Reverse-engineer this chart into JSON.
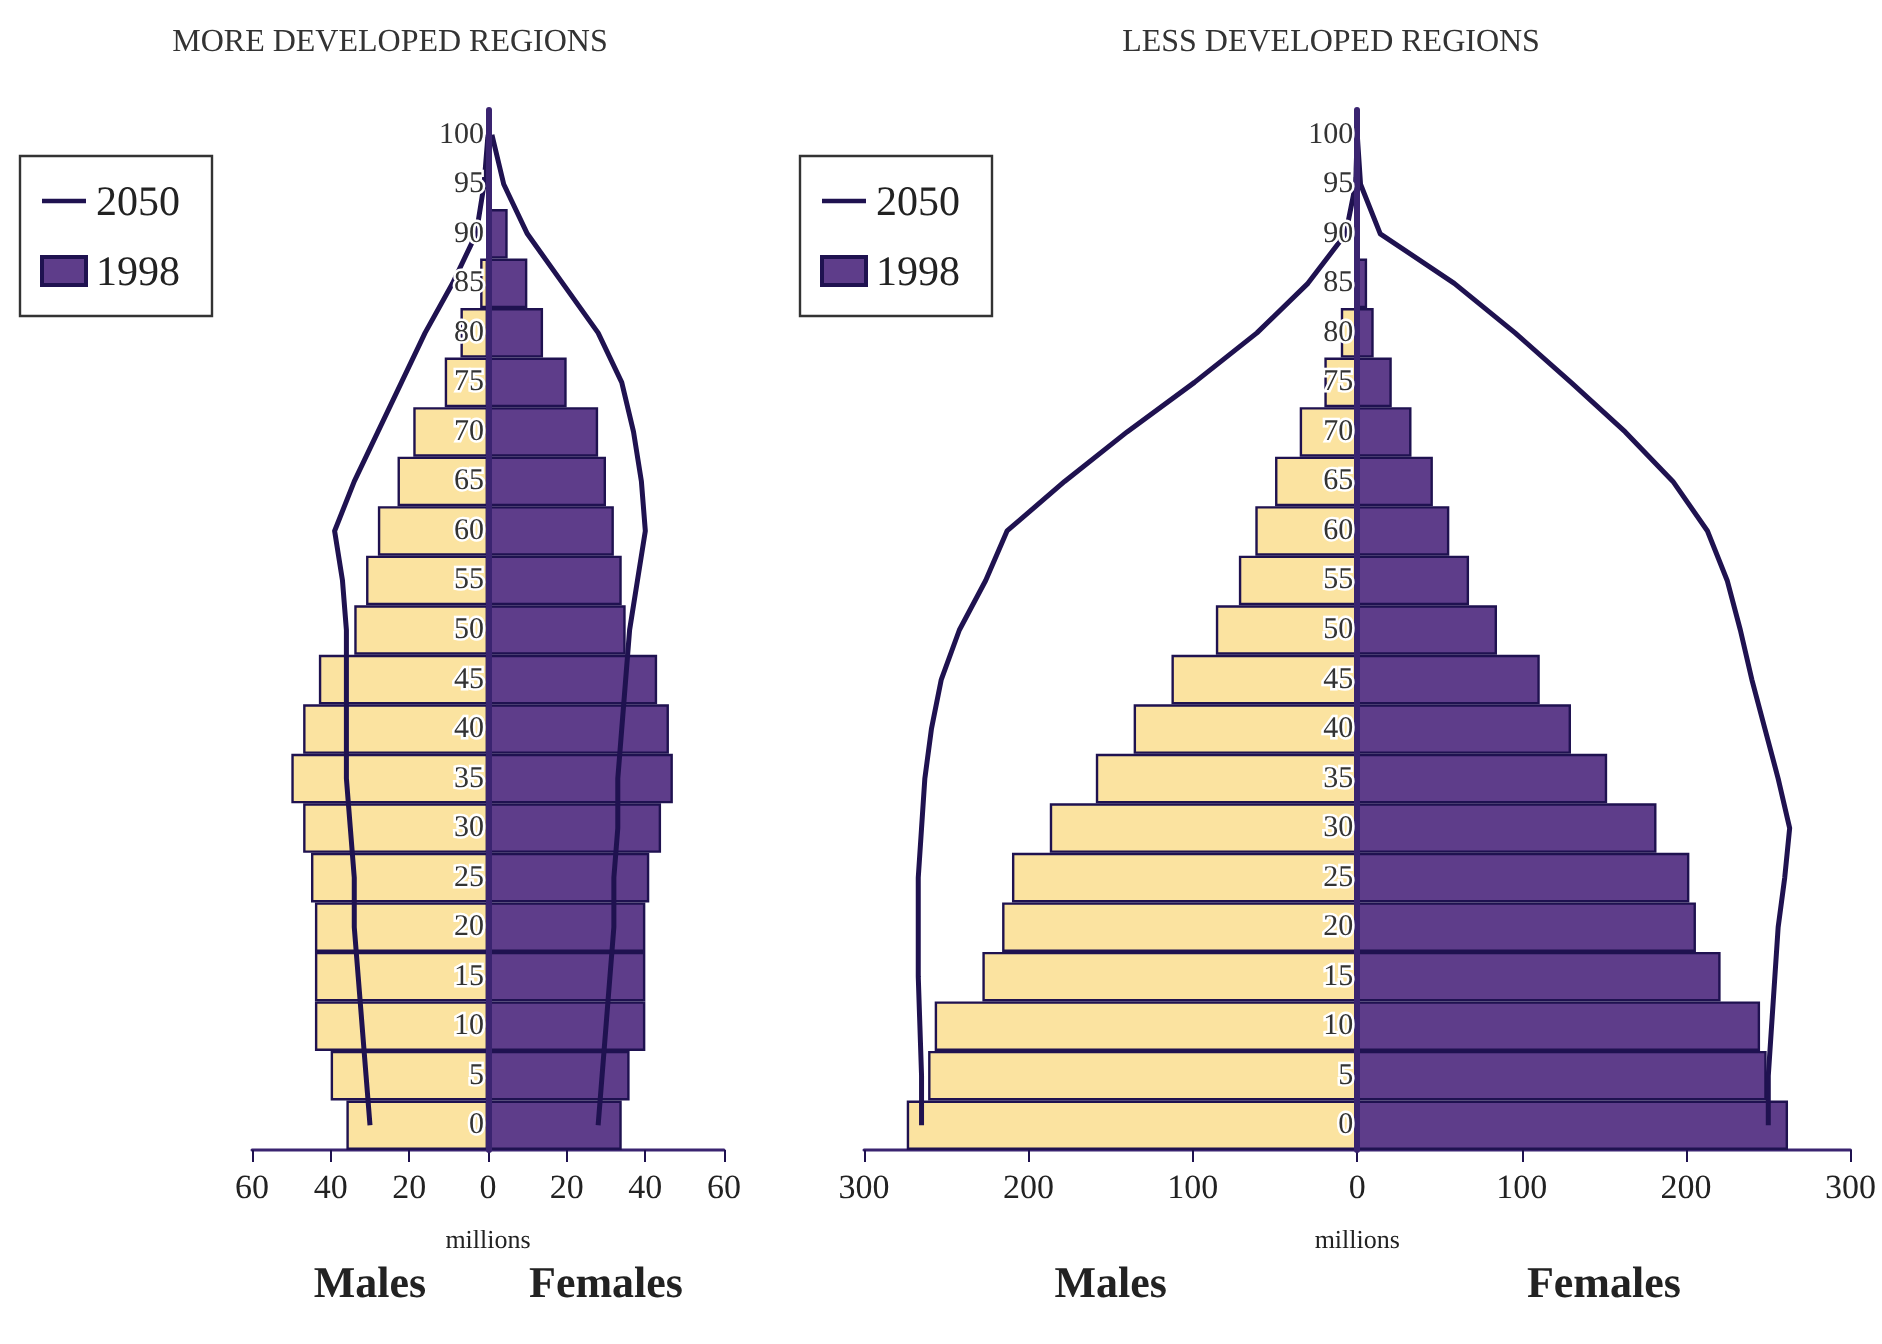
{
  "chart_data": [
    {
      "type": "bar",
      "orientation": "horizontal",
      "title": "MORE DEVELOPED REGIONS",
      "xlabel": "millions",
      "annotations": [
        "Males",
        "Females"
      ],
      "categories": [
        "100",
        "95",
        "90",
        "85",
        "80",
        "75",
        "70",
        "65",
        "60",
        "55",
        "50",
        "45",
        "40",
        "35",
        "30",
        "25",
        "20",
        "15",
        "10",
        "5",
        "0"
      ],
      "series": [
        {
          "color": "#fbe3a0",
          "values": [
            null,
            null,
            null,
            -2,
            -7,
            -11,
            -19,
            -23,
            -28,
            -31,
            -34,
            -43,
            -47,
            -50,
            -47,
            -45,
            -44,
            -44,
            -44,
            -40,
            -36
          ]
        },
        {
          "name": "1998",
          "color": "#5e3d8a",
          "values": [
            null,
            null,
            5,
            10,
            14,
            20,
            28,
            30,
            32,
            34,
            35,
            43,
            46,
            47,
            44,
            41,
            40,
            40,
            40,
            36,
            34
          ]
        },
        {
          "name": "2050",
          "type": "line",
          "color": "#1f1250",
          "values": [
            0,
            -1,
            -3,
            -9,
            -16,
            -22,
            -28,
            -34,
            -39,
            -37,
            -36,
            -36,
            -36,
            -36,
            -35,
            -34,
            -34,
            -33,
            -32,
            -31,
            -30
          ]
        },
        {
          "type": "line",
          "color": "#1f1250",
          "values": [
            1,
            4,
            10,
            19,
            28,
            34,
            37,
            39,
            40,
            38,
            36,
            35,
            34,
            33,
            33,
            32,
            32,
            31,
            30,
            29,
            28
          ]
        }
      ],
      "xlim": [
        -60,
        60
      ],
      "xticks": [
        {
          "value": -60,
          "label": "60"
        },
        {
          "value": -40,
          "label": "40"
        },
        {
          "value": -20,
          "label": "20"
        },
        0,
        20,
        40,
        60
      ],
      "legend": "top left",
      "marker": "none",
      "grid": false,
      "stacked": true
    },
    {
      "type": "bar",
      "orientation": "horizontal",
      "title": "LESS DEVELOPED REGIONS",
      "xlabel": "millions",
      "annotations": [
        "Males",
        "Females"
      ],
      "categories": [
        "100",
        "95",
        "90",
        "85",
        "80",
        "75",
        "70",
        "65",
        "60",
        "55",
        "50",
        "45",
        "40",
        "35",
        "30",
        "25",
        "20",
        "15",
        "10",
        "5",
        "0"
      ],
      "series": [
        {
          "color": "#fbe3a0",
          "values": [
            null,
            null,
            null,
            null,
            -10,
            -20,
            -35,
            -50,
            -62,
            -72,
            -86,
            -113,
            -136,
            -159,
            -187,
            -210,
            -216,
            -228,
            -257,
            -261,
            -274
          ]
        },
        {
          "name": "1998",
          "color": "#5e3d8a",
          "values": [
            null,
            null,
            null,
            6,
            10,
            21,
            33,
            46,
            56,
            68,
            85,
            111,
            130,
            152,
            182,
            202,
            206,
            221,
            245,
            249,
            262
          ]
        },
        {
          "name": "2050",
          "type": "line",
          "color": "#1f1250",
          "values": [
            0,
            -1,
            -7,
            -30,
            -61,
            -99,
            -140,
            -178,
            -213,
            -226,
            -242,
            -253,
            -259,
            -263,
            -265,
            -267,
            -267,
            -267,
            -266,
            -265,
            -265
          ]
        },
        {
          "type": "line",
          "color": "#1f1250",
          "values": [
            0,
            2,
            14,
            59,
            96,
            130,
            163,
            192,
            213,
            225,
            233,
            240,
            248,
            256,
            263,
            260,
            256,
            254,
            252,
            250,
            250
          ]
        }
      ],
      "xlim": [
        -300,
        300
      ],
      "xticks": [
        {
          "value": -300,
          "label": "300"
        },
        {
          "value": -200,
          "label": "200"
        },
        {
          "value": -100,
          "label": "100"
        },
        0,
        100,
        200,
        300
      ],
      "legend": "top left",
      "marker": "none",
      "grid": false,
      "stacked": true
    }
  ]
}
